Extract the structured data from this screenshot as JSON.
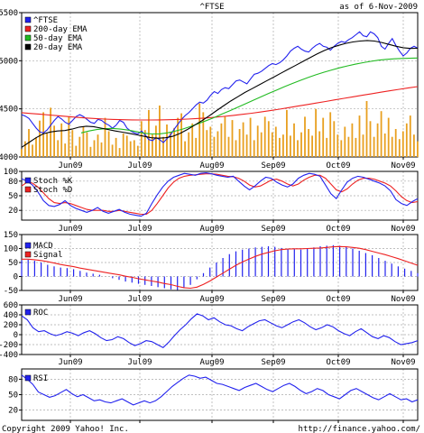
{
  "header": {
    "title": "^FTSE",
    "as_of": "as of  6-Nov-2009"
  },
  "footer": {
    "copyright": "Copyright 2009 Yahoo! Inc.",
    "url": "http://finance.yahoo.com/"
  },
  "colors": {
    "ftse": "#2222ee",
    "ema200": "#ee2222",
    "ema50": "#22bb22",
    "ema20": "#000000",
    "volume": "#e8a020",
    "stochK": "#2222ee",
    "stochD": "#ee2222",
    "macd": "#2222ee",
    "signal": "#ee2222",
    "roc": "#2222ee",
    "rsi": "#2222ee"
  },
  "chart_data": [
    {
      "type": "line",
      "panel": "price",
      "title": "^FTSE",
      "months": [
        "Jun09",
        "Jul09",
        "Aug09",
        "Sep09",
        "Oct09",
        "Nov09"
      ],
      "yticks": [
        4000,
        4500,
        5000,
        5500
      ],
      "ylim": [
        4000,
        5500
      ],
      "legend": [
        "^FTSE",
        "200-day EMA",
        "50-day EMA",
        "20-day EMA"
      ],
      "series": [
        {
          "name": "^FTSE",
          "values": [
            4440,
            4425,
            4400,
            4350,
            4300,
            4260,
            4250,
            4280,
            4330,
            4380,
            4420,
            4395,
            4360,
            4340,
            4380,
            4420,
            4440,
            4420,
            4390,
            4360,
            4350,
            4390,
            4380,
            4350,
            4330,
            4300,
            4330,
            4380,
            4360,
            4300,
            4270,
            4250,
            4240,
            4270,
            4230,
            4180,
            4170,
            4200,
            4180,
            4150,
            4190,
            4230,
            4290,
            4340,
            4390,
            4430,
            4460,
            4500,
            4540,
            4570,
            4560,
            4590,
            4640,
            4680,
            4660,
            4700,
            4720,
            4710,
            4750,
            4790,
            4800,
            4780,
            4760,
            4810,
            4860,
            4870,
            4890,
            4920,
            4950,
            4970,
            4960,
            4980,
            5010,
            5050,
            5100,
            5130,
            5150,
            5120,
            5100,
            5090,
            5130,
            5160,
            5180,
            5150,
            5140,
            5110,
            5150,
            5180,
            5200,
            5190,
            5220,
            5240,
            5270,
            5300,
            5260,
            5250,
            5300,
            5280,
            5240,
            5150,
            5120,
            5180,
            5230,
            5160,
            5100,
            5050,
            5080,
            5130,
            5150,
            5130
          ]
        },
        {
          "name": "200-day EMA",
          "values": [
            4460,
            4452,
            4444,
            4436,
            4428,
            4420,
            4412,
            4405,
            4399,
            4394,
            4390,
            4387,
            4385,
            4384,
            4384,
            4385,
            4387,
            4390,
            4394,
            4399,
            4405,
            4413,
            4422,
            4432,
            4443,
            4455,
            4468,
            4482,
            4497,
            4513,
            4529,
            4545,
            4561,
            4577,
            4593,
            4609,
            4625,
            4641,
            4657,
            4673,
            4688,
            4703,
            4718,
            4731
          ]
        },
        {
          "name": "50-day EMA",
          "values": [
            4250,
            4270,
            4285,
            4293,
            4297,
            4290,
            4279,
            4264,
            4247,
            4239,
            4240,
            4250,
            4268,
            4291,
            4318,
            4347,
            4378,
            4411,
            4446,
            4481,
            4517,
            4553,
            4590,
            4626,
            4662,
            4697,
            4731,
            4764,
            4796,
            4826,
            4854,
            4880,
            4904,
            4926,
            4946,
            4964,
            4980,
            4994,
            5006,
            5014,
            5020,
            5024,
            5026,
            5028
          ]
        },
        {
          "name": "20-day EMA",
          "values": [
            4100,
            4150,
            4200,
            4240,
            4260,
            4270,
            4275,
            4290,
            4310,
            4320,
            4315,
            4300,
            4285,
            4270,
            4258,
            4245,
            4230,
            4215,
            4200,
            4195,
            4200,
            4215,
            4245,
            4285,
            4330,
            4375,
            4425,
            4478,
            4530,
            4580,
            4625,
            4670,
            4710,
            4750,
            4790,
            4830,
            4870,
            4910,
            4950,
            4990,
            5030,
            5070,
            5105,
            5135,
            5160,
            5180,
            5195,
            5205,
            5210,
            5205,
            5190,
            5170,
            5150,
            5135,
            5128,
            5130
          ]
        }
      ],
      "volume": [
        14,
        28,
        50,
        22,
        35,
        65,
        80,
        42,
        88,
        56,
        30,
        60,
        24,
        72,
        48,
        20,
        36,
        54,
        44,
        18,
        30,
        40,
        26,
        70,
        46,
        22,
        34,
        16,
        42,
        38,
        28,
        30,
        20,
        64,
        48,
        84,
        40,
        56,
        92,
        36,
        58,
        44,
        52,
        70,
        78,
        28,
        44,
        60,
        34,
        96,
        80,
        48,
        54,
        36,
        46,
        60,
        72,
        36,
        66,
        30,
        50,
        62,
        40,
        70,
        30,
        56,
        44,
        72,
        64,
        44,
        54,
        34,
        40,
        84,
        38,
        60,
        30,
        44,
        72,
        50,
        38,
        86,
        46,
        70,
        34,
        80,
        64,
        40,
        30,
        54,
        36,
        60,
        34,
        74,
        40,
        100,
        64,
        36,
        60,
        82,
        42,
        70,
        36,
        50,
        32,
        46,
        60,
        74,
        40,
        28
      ]
    },
    {
      "type": "line",
      "panel": "stochastic",
      "months": [
        "Jun09",
        "Jul09",
        "Aug09",
        "Sep09",
        "Oct09",
        "Nov09"
      ],
      "yticks": [
        20,
        50,
        80,
        100
      ],
      "ylim": [
        0,
        100
      ],
      "legend": [
        "Stoch %K",
        "Stoch %D"
      ],
      "series": [
        {
          "name": "Stoch %K",
          "values": [
            85,
            80,
            72,
            58,
            40,
            30,
            28,
            32,
            40,
            30,
            24,
            20,
            16,
            20,
            26,
            18,
            14,
            18,
            22,
            16,
            12,
            10,
            8,
            14,
            34,
            52,
            68,
            80,
            88,
            92,
            96,
            94,
            92,
            96,
            97,
            95,
            92,
            90,
            88,
            90,
            80,
            70,
            62,
            70,
            80,
            88,
            86,
            78,
            72,
            68,
            74,
            86,
            92,
            96,
            94,
            90,
            72,
            54,
            44,
            62,
            78,
            86,
            90,
            88,
            84,
            80,
            76,
            70,
            60,
            42,
            34,
            30,
            38,
            44
          ]
        },
        {
          "name": "Stoch %D",
          "values": [
            70,
            78,
            76,
            68,
            56,
            44,
            36,
            34,
            36,
            34,
            30,
            26,
            22,
            20,
            20,
            20,
            18,
            18,
            20,
            18,
            16,
            14,
            12,
            12,
            20,
            34,
            50,
            66,
            78,
            86,
            90,
            92,
            93,
            94,
            95,
            95,
            94,
            92,
            90,
            89,
            86,
            80,
            72,
            68,
            70,
            76,
            82,
            84,
            80,
            74,
            70,
            74,
            82,
            88,
            92,
            92,
            86,
            74,
            62,
            58,
            64,
            74,
            82,
            86,
            86,
            84,
            80,
            76,
            70,
            60,
            48,
            40,
            36,
            38
          ]
        }
      ]
    },
    {
      "type": "bar",
      "panel": "macd",
      "months": [
        "Jun09",
        "Jul09",
        "Aug09",
        "Sep09",
        "Oct09",
        "Nov09"
      ],
      "yticks": [
        -50,
        0,
        50,
        100,
        150
      ],
      "ylim": [
        -50,
        150
      ],
      "legend": [
        "MACD",
        "Signal"
      ],
      "series": [
        {
          "name": "MACD",
          "values": [
            58,
            60,
            56,
            50,
            42,
            36,
            32,
            30,
            26,
            20,
            14,
            10,
            6,
            0,
            -6,
            -12,
            -18,
            -22,
            -26,
            -30,
            -34,
            -38,
            -42,
            -46,
            -48,
            -42,
            -30,
            -10,
            12,
            32,
            50,
            66,
            80,
            90,
            96,
            100,
            104,
            106,
            108,
            106,
            102,
            100,
            98,
            96,
            100,
            104,
            108,
            110,
            112,
            110,
            106,
            100,
            92,
            84,
            76,
            66,
            56,
            46,
            36,
            28,
            20,
            12
          ]
        },
        {
          "name": "Signal",
          "values": [
            62,
            62,
            60,
            57,
            53,
            48,
            43,
            39,
            35,
            30,
            26,
            22,
            18,
            14,
            10,
            6,
            1,
            -3,
            -8,
            -12,
            -16,
            -20,
            -25,
            -29,
            -35,
            -40,
            -42,
            -38,
            -28,
            -16,
            -2,
            12,
            26,
            40,
            52,
            62,
            72,
            80,
            86,
            92,
            96,
            98,
            99,
            99,
            100,
            101,
            102,
            104,
            106,
            107,
            106,
            104,
            101,
            96,
            90,
            84,
            78,
            71,
            64,
            56,
            48,
            40
          ]
        }
      ]
    },
    {
      "type": "line",
      "panel": "roc",
      "months": [
        "Jun09",
        "Jul09",
        "Aug09",
        "Sep09",
        "Oct09",
        "Nov09"
      ],
      "yticks": [
        -400,
        -200,
        0,
        200,
        400,
        600
      ],
      "ylim": [
        -400,
        600
      ],
      "legend": [
        "ROC"
      ],
      "series": [
        {
          "name": "ROC",
          "values": [
            380,
            300,
            140,
            60,
            80,
            20,
            -20,
            10,
            60,
            30,
            -20,
            40,
            80,
            20,
            -60,
            -120,
            -100,
            -40,
            -80,
            -160,
            -220,
            -180,
            -120,
            -140,
            -200,
            -260,
            -150,
            -20,
            100,
            200,
            320,
            420,
            380,
            300,
            340,
            260,
            200,
            180,
            120,
            80,
            160,
            220,
            280,
            300,
            240,
            180,
            140,
            200,
            260,
            300,
            240,
            160,
            100,
            140,
            200,
            160,
            80,
            20,
            -20,
            60,
            120,
            40,
            -40,
            -80,
            -20,
            -60,
            -140,
            -200,
            -180,
            -160,
            -120
          ]
        }
      ]
    },
    {
      "type": "line",
      "panel": "rsi",
      "months": [
        "Jun09",
        "Jul09",
        "Aug09",
        "Sep09",
        "Oct09",
        "Nov09"
      ],
      "yticks": [
        20,
        50,
        80
      ],
      "ylim": [
        0,
        100
      ],
      "legend": [
        "RSI"
      ],
      "series": [
        {
          "name": "RSI",
          "values": [
            88,
            80,
            70,
            55,
            50,
            45,
            48,
            54,
            60,
            52,
            46,
            50,
            44,
            38,
            40,
            36,
            34,
            38,
            42,
            36,
            30,
            34,
            38,
            34,
            38,
            46,
            56,
            66,
            74,
            82,
            88,
            86,
            82,
            84,
            78,
            72,
            70,
            66,
            62,
            58,
            64,
            68,
            72,
            66,
            60,
            56,
            62,
            68,
            72,
            66,
            58,
            52,
            56,
            62,
            58,
            50,
            46,
            42,
            50,
            58,
            62,
            56,
            50,
            44,
            40,
            46,
            52,
            46,
            40,
            42,
            36,
            40
          ]
        }
      ]
    }
  ]
}
